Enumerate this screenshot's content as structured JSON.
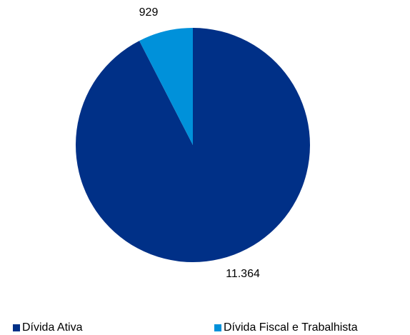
{
  "chart_data": {
    "type": "pie",
    "categories": [
      "Dívida Ativa",
      "Dívida Fiscal e Trabalhista"
    ],
    "values": [
      11364,
      929
    ],
    "data_labels": [
      "11.364",
      "929"
    ],
    "colors": [
      "#003087",
      "#0091DA"
    ],
    "start_angle": "12 o'clock",
    "direction": "clockwise",
    "legend": "bottom"
  }
}
